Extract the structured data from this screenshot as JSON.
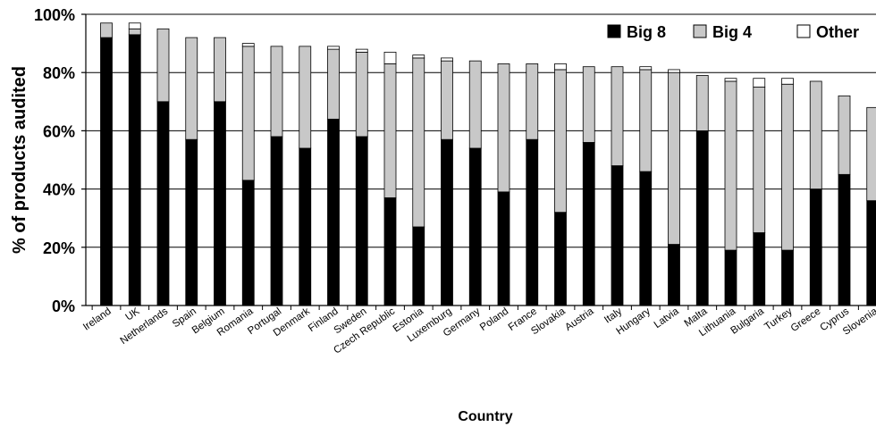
{
  "chart_data": {
    "type": "bar",
    "stacked": true,
    "xlabel": "Country",
    "ylabel": "% of products audited",
    "ylim": [
      0,
      100
    ],
    "yticks": [
      "0%",
      "20%",
      "40%",
      "60%",
      "80%",
      "100%"
    ],
    "grid": "horizontal",
    "legend_position": "top-right",
    "categories": [
      "Ireland",
      "UK",
      "Netherlands",
      "Spain",
      "Belgium",
      "Romania",
      "Portugal",
      "Denmark",
      "Finland",
      "Sweden",
      "Czech Republic",
      "Estonia",
      "Luxemburg",
      "Germany",
      "Poland",
      "France",
      "Slovakia",
      "Austria",
      "Italy",
      "Hungary",
      "Latvia",
      "Malta",
      "Lithuania",
      "Bulgaria",
      "Turkey",
      "Greece",
      "Cyprus",
      "Slovenia"
    ],
    "series": [
      {
        "name": "Big 8",
        "color": "#000000",
        "values": [
          92,
          93,
          70,
          57,
          70,
          43,
          58,
          54,
          64,
          58,
          37,
          27,
          57,
          54,
          39,
          57,
          32,
          56,
          48,
          46,
          21,
          60,
          19,
          25,
          19,
          40,
          45,
          36
        ]
      },
      {
        "name": "Big 4",
        "color": "#c8c8c8",
        "values": [
          5,
          2,
          25,
          35,
          22,
          46,
          31,
          35,
          24,
          29,
          46,
          58,
          27,
          30,
          44,
          26,
          49,
          26,
          34,
          35,
          59,
          19,
          58,
          50,
          57,
          37,
          27,
          32
        ]
      },
      {
        "name": "Other",
        "color": "#ffffff",
        "values": [
          0,
          2,
          0,
          0,
          0,
          1,
          0,
          0,
          1,
          1,
          4,
          1,
          1,
          0,
          0,
          0,
          2,
          0,
          0,
          1,
          1,
          0,
          1,
          3,
          2,
          0,
          0,
          0
        ]
      }
    ]
  }
}
